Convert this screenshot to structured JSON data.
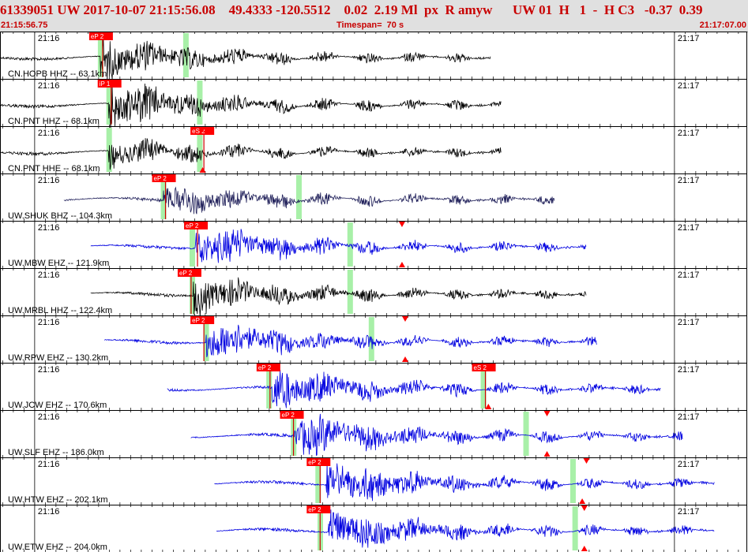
{
  "header": {
    "title": "61339051 UW 2017-10-07 21:15:56.08    49.4333 -120.5512    0.02  2.19 Ml  px  R amyw      UW 01  H   1  -  H C3   -0.37  0.39",
    "start_time": "21:15:56.75",
    "timespan_label": "Timespan=  70 s",
    "end_time": "21:17:07.00"
  },
  "chart_data": {
    "type": "line",
    "time_window": {
      "start": "21:15:56.75",
      "end": "21:17:07.00",
      "span_seconds": 70
    },
    "tick_minute_labels": [
      "21:16",
      "21:17"
    ],
    "traces": [
      {
        "label": "CN.HOPB HHZ -- 63.1km",
        "color": "#000000",
        "start_s": 0,
        "end_s": 46,
        "onset_s": 9.4,
        "amp": 0.55,
        "picks": [
          {
            "label": "eP 2",
            "t": 9.4
          }
        ],
        "green_marks": [
          9.4,
          17.4
        ],
        "triangles": []
      },
      {
        "label": "CN.PNT HHZ -- 68.1km",
        "color": "#000000",
        "start_s": 0,
        "end_s": 47,
        "onset_s": 10.2,
        "amp": 0.6,
        "picks": [
          {
            "label": "iP 1",
            "t": 10.2
          }
        ],
        "green_marks": [
          10.2,
          18.7
        ],
        "triangles": []
      },
      {
        "label": "CN.PNT HHE -- 68.1km",
        "color": "#000000",
        "start_s": 0,
        "end_s": 47,
        "onset_s": 10.2,
        "amp": 0.35,
        "picks": [
          {
            "label": "eS 2",
            "t": 18.9
          }
        ],
        "green_marks": [
          10.2,
          18.7
        ],
        "triangles": [
          {
            "t": 19.0,
            "pos": "top"
          },
          {
            "t": 19.0,
            "pos": "bottom"
          }
        ]
      },
      {
        "label": "UW.SHUK BHZ -- 104.3km",
        "color": "#20205a",
        "start_s": 6,
        "end_s": 52,
        "onset_s": 15.3,
        "amp": 0.4,
        "picks": [
          {
            "label": "eP 2",
            "t": 15.3
          }
        ],
        "green_marks": [
          15.3,
          28.0
        ],
        "triangles": []
      },
      {
        "label": "UW.MBW EHZ -- 121.9km",
        "color": "#0000e0",
        "start_s": 8.5,
        "end_s": 55,
        "onset_s": 18.3,
        "amp": 0.55,
        "picks": [
          {
            "label": "eP 2",
            "t": 18.3
          }
        ],
        "green_marks": [
          18.0,
          32.8
        ],
        "triangles": [
          {
            "t": 37.7,
            "pos": "top"
          },
          {
            "t": 37.7,
            "pos": "bottom"
          }
        ]
      },
      {
        "label": "UW.MRBL HHZ -- 122.4km",
        "color": "#000000",
        "start_s": 8.5,
        "end_s": 55,
        "onset_s": 18.1,
        "amp": 0.5,
        "picks": [
          {
            "label": "eP 2",
            "t": 17.7
          }
        ],
        "green_marks": [
          18.0,
          32.8
        ],
        "triangles": []
      },
      {
        "label": "UW.RPW EHZ -- 130.2km",
        "color": "#0000e0",
        "start_s": 9.8,
        "end_s": 56,
        "onset_s": 19.3,
        "amp": 0.55,
        "picks": [
          {
            "label": "eP 2",
            "t": 18.9
          }
        ],
        "green_marks": [
          19.3,
          34.8
        ],
        "triangles": [
          {
            "t": 38.0,
            "pos": "top"
          },
          {
            "t": 38.0,
            "pos": "bottom"
          }
        ]
      },
      {
        "label": "UW.JCW EHZ -- 170.6km",
        "color": "#0000e0",
        "start_s": 15.7,
        "end_s": 62,
        "onset_s": 25.5,
        "amp": 0.55,
        "picks": [
          {
            "label": "eP 2",
            "t": 25.1
          },
          {
            "label": "eS 2",
            "t": 45.3
          }
        ],
        "green_marks": [
          25.2,
          45.3
        ],
        "triangles": [
          {
            "t": 45.8,
            "pos": "bottom"
          }
        ]
      },
      {
        "label": "UW.SLF EHZ -- 186.0km",
        "color": "#0000e0",
        "start_s": 17.9,
        "end_s": 64,
        "onset_s": 27.6,
        "amp": 0.6,
        "picks": [
          {
            "label": "eP 2",
            "t": 27.3
          }
        ],
        "green_marks": [
          27.5,
          49.3
        ],
        "triangles": [
          {
            "t": 51.3,
            "pos": "top"
          },
          {
            "t": 51.3,
            "pos": "bottom"
          }
        ]
      },
      {
        "label": "UW.HTW EHZ -- 202.1km",
        "color": "#0000e0",
        "start_s": 20.1,
        "end_s": 67,
        "onset_s": 30.6,
        "amp": 0.6,
        "picks": [
          {
            "label": "eP 2",
            "t": 29.8
          }
        ],
        "green_marks": [
          29.8,
          53.7
        ],
        "triangles": [
          {
            "t": 55.0,
            "pos": "top"
          },
          {
            "t": 54.6,
            "pos": "bottom"
          }
        ]
      },
      {
        "label": "UW.ETW EHZ -- 204.0km",
        "color": "#0000e0",
        "start_s": 20.3,
        "end_s": 67,
        "onset_s": 30.8,
        "amp": 0.55,
        "picks": [
          {
            "label": "eP 2",
            "t": 29.8
          }
        ],
        "green_marks": [
          30.0,
          53.9
        ],
        "triangles": [
          {
            "t": 54.8,
            "pos": "top"
          },
          {
            "t": 54.8,
            "pos": "bottom"
          }
        ]
      }
    ]
  }
}
